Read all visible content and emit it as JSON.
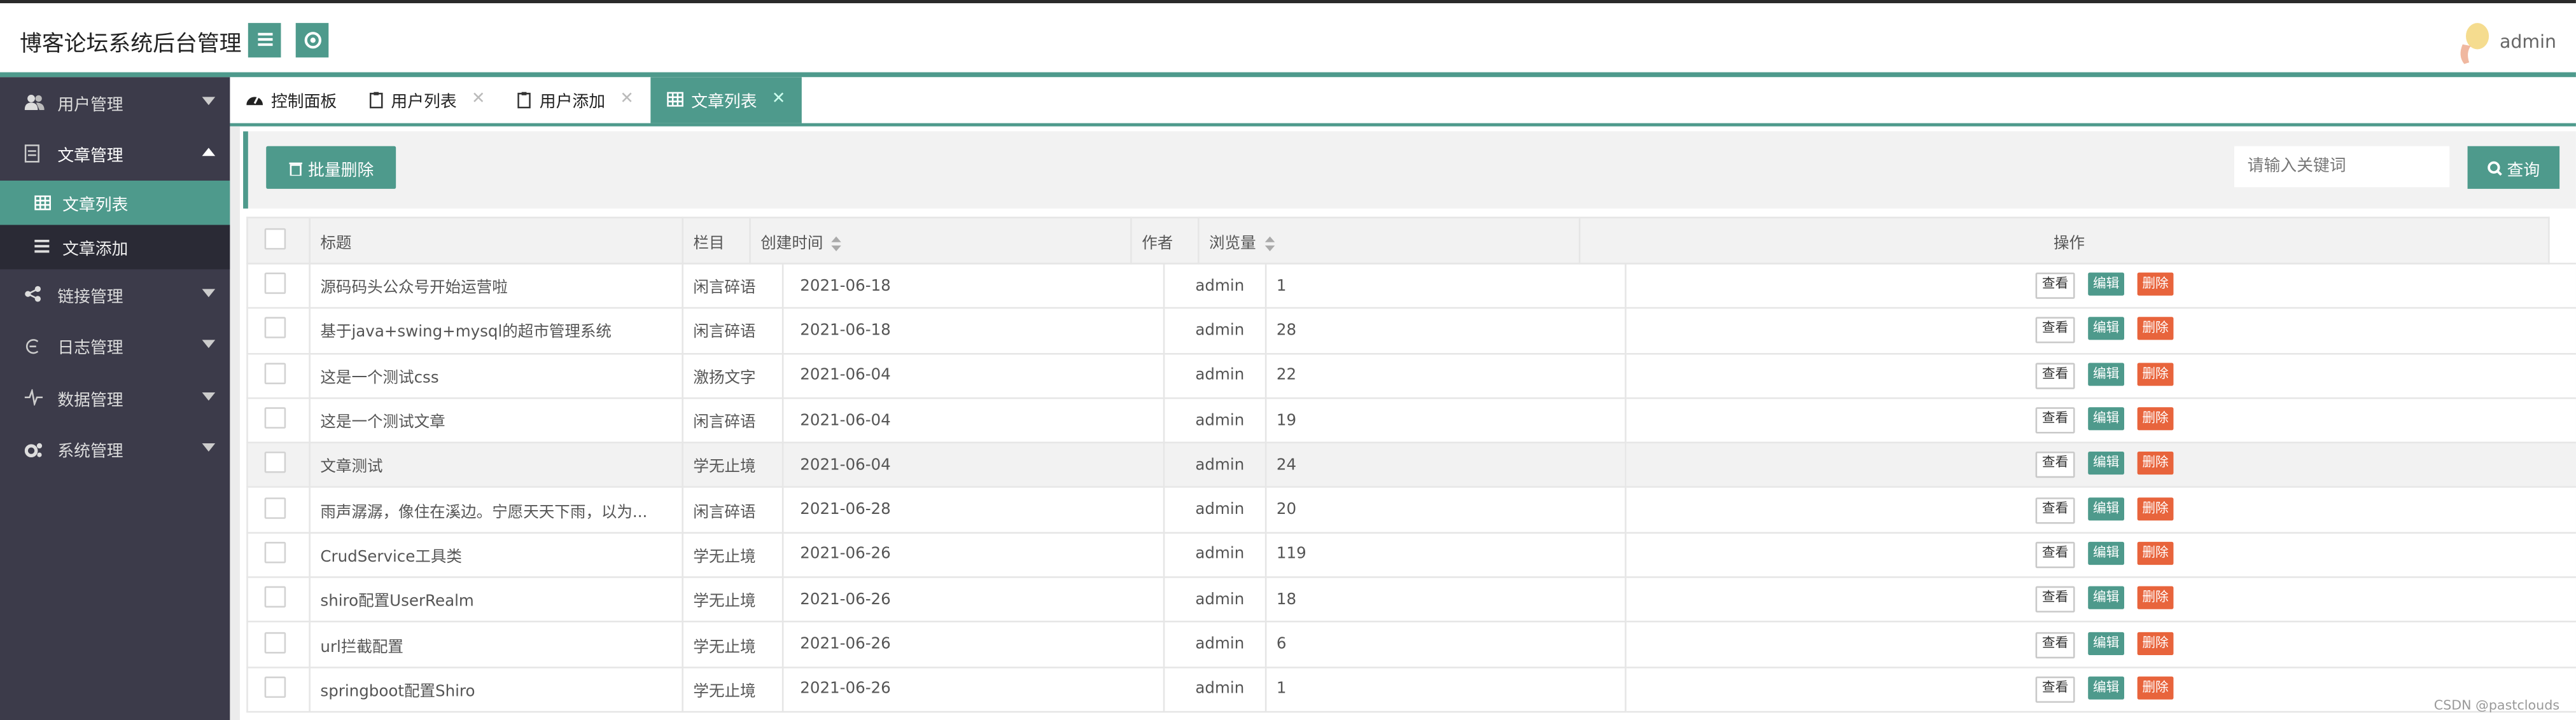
{
  "header": {
    "title": "博客论坛系统后台管理",
    "user": "admin"
  },
  "sidebar": {
    "items": [
      {
        "label": "用户管理",
        "icon": "users-icon"
      },
      {
        "label": "文章管理",
        "icon": "article-icon",
        "open": true,
        "children": [
          {
            "label": "文章列表",
            "active": true
          },
          {
            "label": "文章添加"
          }
        ]
      },
      {
        "label": "链接管理",
        "icon": "share-icon"
      },
      {
        "label": "日志管理",
        "icon": "log-icon"
      },
      {
        "label": "数据管理",
        "icon": "pulse-icon"
      },
      {
        "label": "系统管理",
        "icon": "gears-icon"
      }
    ]
  },
  "tabs": [
    {
      "label": "控制面板",
      "closable": false
    },
    {
      "label": "用户列表",
      "closable": true
    },
    {
      "label": "用户添加",
      "closable": true
    },
    {
      "label": "文章列表",
      "closable": true,
      "active": true
    }
  ],
  "tab_close": "✕",
  "toolbar": {
    "batch_delete": "批量删除",
    "search_placeholder": "请输入关键词",
    "search_button": "查询"
  },
  "table": {
    "columns": [
      "标题",
      "栏目",
      "创建时间",
      "作者",
      "浏览量",
      "操作"
    ],
    "actions": {
      "view": "查看",
      "edit": "编辑",
      "delete": "删除"
    },
    "rows": [
      {
        "title": "源码码头公众号开始运营啦",
        "category": "闲言碎语",
        "date": "2021-06-18",
        "author": "admin",
        "views": "1"
      },
      {
        "title": "基于java+swing+mysql的超市管理系统",
        "category": "闲言碎语",
        "date": "2021-06-18",
        "author": "admin",
        "views": "28"
      },
      {
        "title": "这是一个测试css",
        "category": "激扬文字",
        "date": "2021-06-04",
        "author": "admin",
        "views": "22"
      },
      {
        "title": "这是一个测试文章",
        "category": "闲言碎语",
        "date": "2021-06-04",
        "author": "admin",
        "views": "19"
      },
      {
        "title": "文章测试",
        "category": "学无止境",
        "date": "2021-06-04",
        "author": "admin",
        "views": "24"
      },
      {
        "title": "雨声潺潺，像住在溪边。宁愿天天下雨，以为...",
        "category": "闲言碎语",
        "date": "2021-06-28",
        "author": "admin",
        "views": "20"
      },
      {
        "title": "CrudService工具类",
        "category": "学无止境",
        "date": "2021-06-26",
        "author": "admin",
        "views": "119"
      },
      {
        "title": "shiro配置UserRealm",
        "category": "学无止境",
        "date": "2021-06-26",
        "author": "admin",
        "views": "18"
      },
      {
        "title": "url拦截配置",
        "category": "学无止境",
        "date": "2021-06-26",
        "author": "admin",
        "views": "6"
      },
      {
        "title": "springboot配置Shiro",
        "category": "学无止境",
        "date": "2021-06-26",
        "author": "admin",
        "views": "1"
      }
    ]
  },
  "watermark": "CSDN @pastclouds",
  "colors": {
    "accent": "#4e9a8c",
    "sidebar": "#3c3b4a",
    "danger": "#e8643c"
  }
}
